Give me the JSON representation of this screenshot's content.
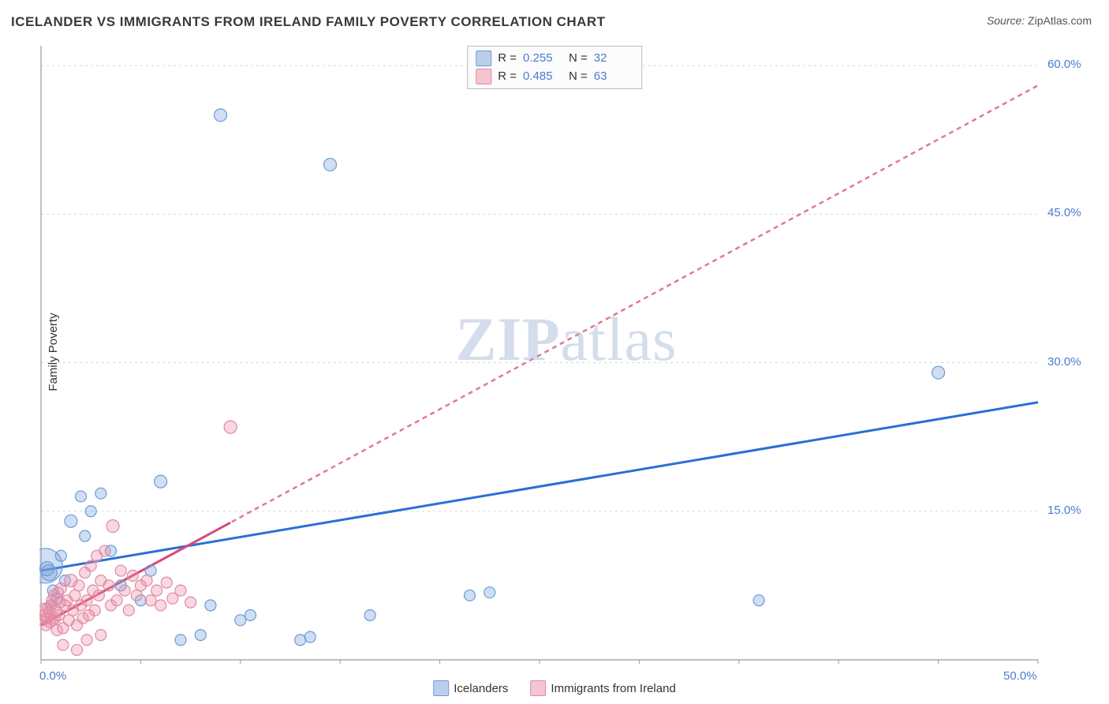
{
  "title": "ICELANDER VS IMMIGRANTS FROM IRELAND FAMILY POVERTY CORRELATION CHART",
  "source_label": "Source:",
  "source_value": "ZipAtlas.com",
  "y_axis_label": "Family Poverty",
  "watermark": "ZIPatlas",
  "chart": {
    "type": "scatter",
    "xlim": [
      0,
      50
    ],
    "ylim": [
      0,
      62
    ],
    "x_ticks": [
      0,
      50
    ],
    "x_tick_labels": [
      "0.0%",
      "50.0%"
    ],
    "y_ticks": [
      15,
      30,
      45,
      60
    ],
    "y_tick_labels": [
      "15.0%",
      "30.0%",
      "45.0%",
      "60.0%"
    ],
    "grid_color": "#d8d8d8",
    "axis_color": "#999999",
    "background_color": "#ffffff",
    "series": [
      {
        "id": "icelanders",
        "label": "Icelanders",
        "color_fill": "rgba(120,160,220,0.35)",
        "color_stroke": "#6a9bd8",
        "marker": "circle",
        "marker_r": 8,
        "points": [
          [
            0.2,
            9.5,
            22
          ],
          [
            0.4,
            8.8,
            10
          ],
          [
            0.6,
            7.0,
            7
          ],
          [
            0.8,
            6.2,
            7
          ],
          [
            0.5,
            5.5,
            7
          ],
          [
            1.0,
            10.5,
            7
          ],
          [
            1.2,
            8.0,
            7
          ],
          [
            1.5,
            14.0,
            8
          ],
          [
            2.0,
            16.5,
            7
          ],
          [
            2.2,
            12.5,
            7
          ],
          [
            2.5,
            15.0,
            7
          ],
          [
            3.0,
            16.8,
            7
          ],
          [
            3.5,
            11.0,
            7
          ],
          [
            4.0,
            7.5,
            7
          ],
          [
            5.0,
            6.0,
            7
          ],
          [
            5.5,
            9.0,
            7
          ],
          [
            6.0,
            18.0,
            8
          ],
          [
            7.0,
            2.0,
            7
          ],
          [
            8.0,
            2.5,
            7
          ],
          [
            8.5,
            5.5,
            7
          ],
          [
            9.0,
            55.0,
            8
          ],
          [
            10.0,
            4.0,
            7
          ],
          [
            10.5,
            4.5,
            7
          ],
          [
            13.0,
            2.0,
            7
          ],
          [
            13.5,
            2.3,
            7
          ],
          [
            14.5,
            50.0,
            8
          ],
          [
            16.5,
            4.5,
            7
          ],
          [
            21.5,
            6.5,
            7
          ],
          [
            22.5,
            6.8,
            7
          ],
          [
            36.0,
            6.0,
            7
          ],
          [
            45.0,
            29.0,
            8
          ],
          [
            0.3,
            9.2,
            9
          ]
        ],
        "trend": {
          "y_intercept": 9.0,
          "y_at_xmax": 26.0,
          "color": "#2a6fd6",
          "width": 3,
          "dash": "none",
          "extrapolate_dash": false
        },
        "stats": {
          "R": "0.255",
          "N": "32"
        }
      },
      {
        "id": "immigrants-ireland",
        "label": "Immigrants from Ireland",
        "color_fill": "rgba(235,140,165,0.35)",
        "color_stroke": "#e08aa3",
        "marker": "circle",
        "marker_r": 7,
        "points": [
          [
            0.1,
            4.0,
            7
          ],
          [
            0.15,
            4.5,
            7
          ],
          [
            0.2,
            5.0,
            9
          ],
          [
            0.25,
            3.5,
            7
          ],
          [
            0.3,
            4.2,
            7
          ],
          [
            0.35,
            5.2,
            7
          ],
          [
            0.4,
            4.8,
            7
          ],
          [
            0.45,
            3.8,
            7
          ],
          [
            0.5,
            5.5,
            7
          ],
          [
            0.55,
            6.0,
            7
          ],
          [
            0.6,
            4.0,
            7
          ],
          [
            0.65,
            6.5,
            7
          ],
          [
            0.7,
            4.2,
            7
          ],
          [
            0.75,
            5.0,
            7
          ],
          [
            0.8,
            3.0,
            7
          ],
          [
            0.85,
            6.8,
            7
          ],
          [
            0.9,
            4.5,
            7
          ],
          [
            0.95,
            5.8,
            7
          ],
          [
            1.0,
            7.2,
            7
          ],
          [
            1.1,
            3.2,
            7
          ],
          [
            1.2,
            5.5,
            7
          ],
          [
            1.3,
            6.0,
            7
          ],
          [
            1.4,
            4.0,
            7
          ],
          [
            1.5,
            8.0,
            8
          ],
          [
            1.6,
            5.0,
            7
          ],
          [
            1.7,
            6.5,
            7
          ],
          [
            1.8,
            3.5,
            7
          ],
          [
            1.9,
            7.5,
            7
          ],
          [
            2.0,
            5.5,
            7
          ],
          [
            2.1,
            4.2,
            7
          ],
          [
            2.2,
            8.8,
            7
          ],
          [
            2.3,
            6.0,
            7
          ],
          [
            2.4,
            4.5,
            7
          ],
          [
            2.5,
            9.5,
            7
          ],
          [
            2.6,
            7.0,
            7
          ],
          [
            2.7,
            5.0,
            7
          ],
          [
            2.8,
            10.5,
            7
          ],
          [
            2.9,
            6.5,
            7
          ],
          [
            3.0,
            8.0,
            7
          ],
          [
            3.2,
            11.0,
            7
          ],
          [
            3.4,
            7.5,
            7
          ],
          [
            3.5,
            5.5,
            7
          ],
          [
            3.6,
            13.5,
            8
          ],
          [
            3.8,
            6.0,
            7
          ],
          [
            4.0,
            9.0,
            7
          ],
          [
            4.2,
            7.0,
            7
          ],
          [
            4.4,
            5.0,
            7
          ],
          [
            4.6,
            8.5,
            7
          ],
          [
            4.8,
            6.5,
            7
          ],
          [
            5.0,
            7.5,
            7
          ],
          [
            5.3,
            8.0,
            7
          ],
          [
            5.5,
            6.0,
            7
          ],
          [
            5.8,
            7.0,
            7
          ],
          [
            6.0,
            5.5,
            7
          ],
          [
            6.3,
            7.8,
            7
          ],
          [
            6.6,
            6.2,
            7
          ],
          [
            7.0,
            7.0,
            7
          ],
          [
            7.5,
            5.8,
            7
          ],
          [
            9.5,
            23.5,
            8
          ],
          [
            1.1,
            1.5,
            7
          ],
          [
            1.8,
            1.0,
            7
          ],
          [
            2.3,
            2.0,
            7
          ],
          [
            3.0,
            2.5,
            7
          ]
        ],
        "trend": {
          "y_intercept": 3.5,
          "y_at_xmax": 58.0,
          "color": "#e37795",
          "width": 2.5,
          "dash": "6,5",
          "solid_until_x": 9.5,
          "solid_color": "#d84a77",
          "solid_width": 3
        },
        "stats": {
          "R": "0.485",
          "N": "63"
        }
      }
    ],
    "bottom_legend_swatches": [
      {
        "fill": "rgba(120,160,220,0.5)",
        "stroke": "#6a9bd8"
      },
      {
        "fill": "rgba(235,140,165,0.5)",
        "stroke": "#e08aa3"
      }
    ]
  }
}
